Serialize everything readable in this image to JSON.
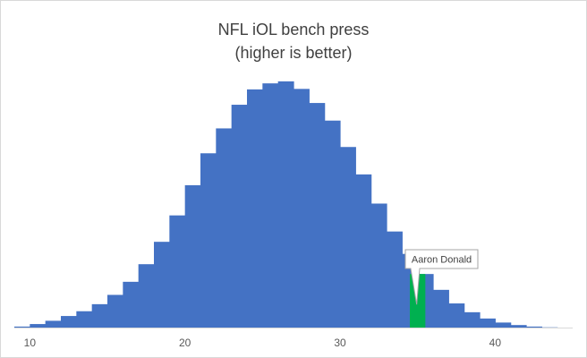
{
  "chart_data": {
    "type": "bar",
    "title": "NFL iOL bench press",
    "subtitle": "(higher is better)",
    "xlabel": "",
    "ylabel": "",
    "xlim": [
      9,
      45
    ],
    "ylim": [
      0,
      100
    ],
    "bin_width": 1,
    "x_ticks": [
      10,
      20,
      30,
      40
    ],
    "bin_starts": [
      9,
      10,
      11,
      12,
      13,
      14,
      15,
      16,
      17,
      18,
      19,
      20,
      21,
      22,
      23,
      24,
      25,
      26,
      27,
      28,
      29,
      30,
      31,
      32,
      33,
      34,
      35,
      36,
      37,
      38,
      39,
      40,
      41,
      42,
      43
    ],
    "values": [
      0.4,
      1.4,
      2.7,
      4.6,
      6.5,
      9.3,
      13.0,
      18.2,
      25.2,
      34.1,
      44.6,
      56.6,
      69.3,
      79.2,
      88.6,
      94.7,
      97.1,
      97.9,
      94.9,
      89.3,
      82.3,
      71.8,
      60.9,
      49.3,
      38.2,
      29.3,
      21.3,
      15.0,
      9.6,
      6.1,
      3.6,
      2.0,
      1.0,
      0.4,
      0.1
    ],
    "highlight": {
      "bin_start": 34.5,
      "value": 21.3,
      "color": "#00b050"
    },
    "bar_color": "#4472c4",
    "grid": false,
    "legend": "none",
    "annotations": [
      {
        "text": "Aaron Donald"
      }
    ]
  }
}
